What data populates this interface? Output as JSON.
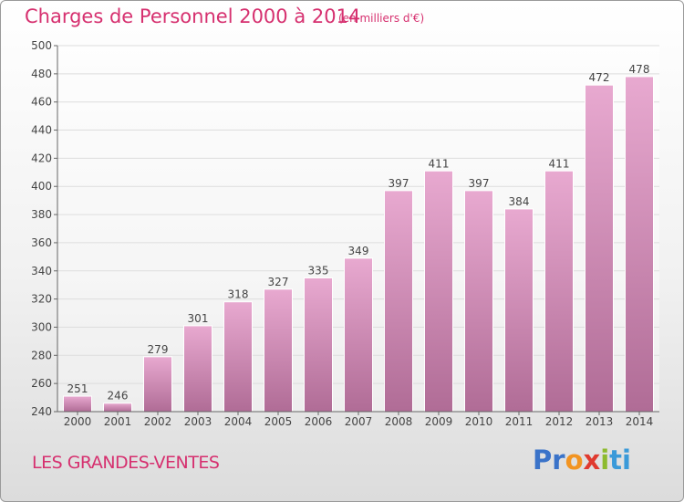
{
  "header": {
    "title": "Charges de Personnel 2000 à 2014",
    "subtitle": "(en milliers d'€)"
  },
  "footer": {
    "commune": "LES GRANDES-VENTES",
    "logo_text": "Proxiti",
    "logo_parts": [
      "Pr",
      "o",
      "x",
      "i",
      "ti"
    ]
  },
  "colors": {
    "title": "#d6306f",
    "bar_top": "#e8a9d0",
    "bar_bottom": "#b06c96",
    "grid": "#dddddd"
  },
  "chart_data": {
    "type": "bar",
    "title": "Charges de Personnel 2000 à 2014",
    "subtitle": "(en milliers d'€)",
    "xlabel": "",
    "ylabel": "",
    "categories": [
      "2000",
      "2001",
      "2002",
      "2003",
      "2004",
      "2005",
      "2006",
      "2007",
      "2008",
      "2009",
      "2010",
      "2011",
      "2012",
      "2013",
      "2014"
    ],
    "values": [
      251,
      246,
      279,
      301,
      318,
      327,
      335,
      349,
      397,
      411,
      397,
      384,
      411,
      472,
      478
    ],
    "ylim": [
      240,
      500
    ],
    "yticks": [
      240,
      260,
      280,
      300,
      320,
      340,
      360,
      380,
      400,
      420,
      440,
      460,
      480,
      500
    ],
    "grid": true,
    "legend": "none"
  }
}
